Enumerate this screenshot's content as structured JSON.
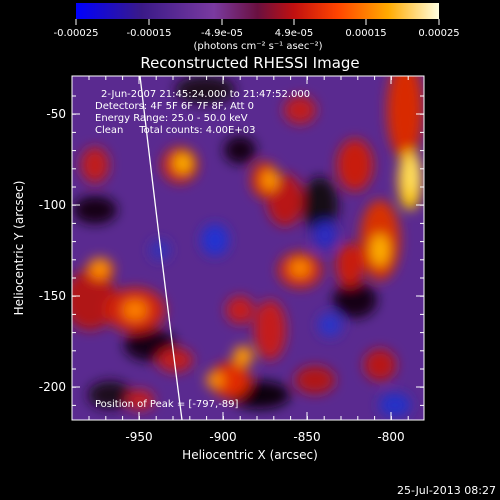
{
  "colorbar": {
    "tick_labels": [
      "-0.00025",
      "-0.00015",
      "-4.9e-05",
      "4.9e-05",
      "0.00015",
      "0.00025"
    ],
    "units_label": "(photons cm⁻² s⁻¹ asec⁻²)"
  },
  "plot": {
    "title": "Reconstructed RHESSI Image",
    "x_label": "Heliocentric X (arcsec)",
    "y_label": "Heliocentric Y (arcsec)",
    "x_ticks": [
      "-950",
      "-900",
      "-850",
      "-800"
    ],
    "y_ticks": [
      "-50",
      "-100",
      "-150",
      "-200"
    ],
    "x_range": [
      -985,
      -775
    ],
    "y_range": [
      -32,
      -222
    ]
  },
  "annotations": {
    "time_range": "2-Jun-2007 21:45:24.000 to 21:47:52.000",
    "detectors": "Detectors: 4F 5F 6F 7F 8F, Att 0",
    "energy_range": "Energy Range: 25.0 - 50.0 keV",
    "clean_counts": "Clean     Total counts: 4.00E+03",
    "peak_position": "Position of Peak = [-797,-89]"
  },
  "footer": {
    "date_stamp": "25-Jul-2013 08:27"
  },
  "colors": {
    "background": "#000000",
    "foreground": "#ffffff",
    "colormap": [
      "#0000ff",
      "#3a1a88",
      "#6a2a9a",
      "#7a3aa0",
      "#a01830",
      "#ff2a00",
      "#ff8800",
      "#ffdd00",
      "#ffffe0"
    ]
  }
}
